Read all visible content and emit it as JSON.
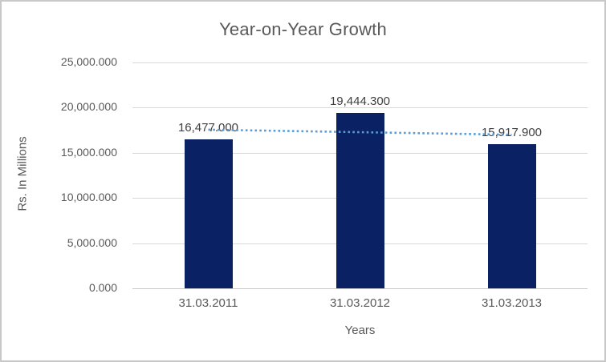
{
  "chart_data": {
    "type": "bar",
    "title": "Year-on-Year Growth",
    "xlabel": "Years",
    "ylabel": "Rs. In Millions",
    "categories": [
      "31.03.2011",
      "31.03.2012",
      "31.03.2013"
    ],
    "values": [
      16477.0,
      19444.3,
      15917.9
    ],
    "data_labels": [
      "16,477.000",
      "19,444.300",
      "15,917.900"
    ],
    "y_ticks": [
      "0.000",
      "5,000.000",
      "10,000.000",
      "15,000.000",
      "20,000.000",
      "25,000.000"
    ],
    "ylim": [
      0,
      25000
    ],
    "grid": true,
    "legend": "none",
    "trendline": {
      "type": "linear",
      "style": "dotted",
      "color": "#5b9bd5"
    },
    "colors": {
      "bar": "#0a2263",
      "trend": "#5b9bd5",
      "title_text": "#595959",
      "axis_text": "#595959",
      "data_label_text": "#404040",
      "gridline": "#d9d9d9",
      "axis_line": "#c9c9c9",
      "chart_border": "#c8c8c8"
    }
  }
}
